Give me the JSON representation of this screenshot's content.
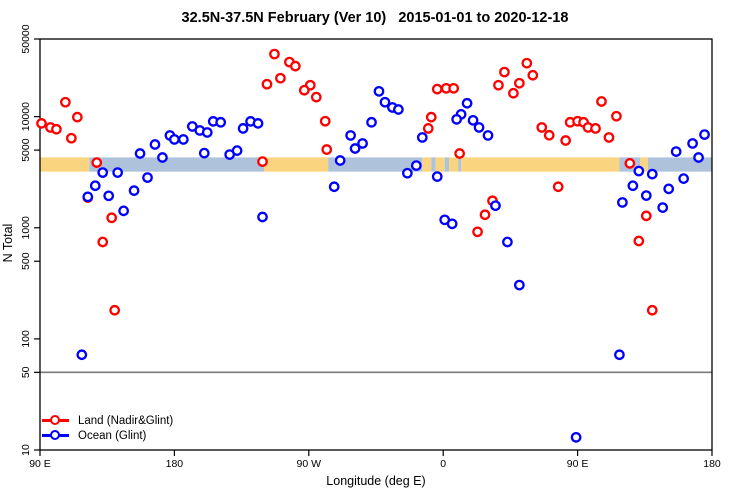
{
  "title": "32.5N-37.5N February (Ver 10)   2015-01-01 to 2020-12-18",
  "chart_data": {
    "type": "scatter",
    "title": "32.5N-37.5N February (Ver 10)   2015-01-01 to 2020-12-18",
    "xlabel": "Longitude (deg E)",
    "ylabel": "N Total",
    "x_axis": {
      "range": [
        90,
        540
      ],
      "note": "longitude increases eastward from 90E, wrapping through the dateline and Greenwich back to 180",
      "ticks": [
        {
          "v": 90,
          "label": "90 E"
        },
        {
          "v": 180,
          "label": "180"
        },
        {
          "v": 270,
          "label": "90 W"
        },
        {
          "v": 360,
          "label": "0"
        },
        {
          "v": 450,
          "label": "90 E"
        },
        {
          "v": 540,
          "label": "180"
        }
      ]
    },
    "y_axis": {
      "scale": "log",
      "range": [
        10,
        50000
      ],
      "ticks": [
        {
          "v": 50000,
          "label": "50000"
        },
        {
          "v": 10000,
          "label": "10000"
        },
        {
          "v": 5000,
          "label": "5000"
        },
        {
          "v": 1000,
          "label": "1000"
        },
        {
          "v": 500,
          "label": "500"
        },
        {
          "v": 100,
          "label": "100"
        },
        {
          "v": 50,
          "label": "50"
        },
        {
          "v": 10,
          "label": "10"
        }
      ]
    },
    "reference_line": {
      "y": 50,
      "color": "#7a7a7a"
    },
    "surface_band": {
      "n_range": [
        3200,
        4300
      ],
      "colors": {
        "land": "#FAD47E",
        "ocean": "#AFC2DC"
      },
      "segments": [
        {
          "from": 90,
          "to": 123,
          "surface": "land"
        },
        {
          "from": 123,
          "to": 240,
          "surface": "ocean"
        },
        {
          "from": 240,
          "to": 283,
          "surface": "land"
        },
        {
          "from": 283,
          "to": 346,
          "surface": "ocean"
        },
        {
          "from": 346,
          "to": 352,
          "surface": "land"
        },
        {
          "from": 352,
          "to": 355,
          "surface": "ocean"
        },
        {
          "from": 355,
          "to": 361,
          "surface": "land"
        },
        {
          "from": 361,
          "to": 364,
          "surface": "ocean"
        },
        {
          "from": 364,
          "to": 370,
          "surface": "land"
        },
        {
          "from": 370,
          "to": 372,
          "surface": "ocean"
        },
        {
          "from": 372,
          "to": 478,
          "surface": "land"
        },
        {
          "from": 478,
          "to": 492,
          "surface": "ocean"
        },
        {
          "from": 492,
          "to": 497,
          "surface": "land"
        },
        {
          "from": 497,
          "to": 540,
          "surface": "ocean"
        }
      ]
    },
    "legend": {
      "position": "bottom-left"
    },
    "series": [
      {
        "name": "Land (Nadir&Glint)",
        "color": "#FF0000",
        "points": [
          [
            107,
            13500
          ],
          [
            91,
            8700
          ],
          [
            97,
            8000
          ],
          [
            101,
            7700
          ],
          [
            115,
            9900
          ],
          [
            111,
            6400
          ],
          [
            128,
            3860
          ],
          [
            122,
            1870
          ],
          [
            138,
            1230
          ],
          [
            132,
            745
          ],
          [
            140,
            181
          ],
          [
            247,
            36600
          ],
          [
            257,
            31000
          ],
          [
            261,
            28500
          ],
          [
            251,
            22200
          ],
          [
            242,
            19600
          ],
          [
            271,
            19200
          ],
          [
            267,
            17300
          ],
          [
            275,
            15000
          ],
          [
            281,
            9100
          ],
          [
            282,
            5060
          ],
          [
            239,
            3940
          ],
          [
            356,
            17700
          ],
          [
            362,
            18000
          ],
          [
            367,
            18000
          ],
          [
            352,
            9900
          ],
          [
            350,
            7840
          ],
          [
            371,
            4660
          ],
          [
            401,
            25200
          ],
          [
            416,
            30300
          ],
          [
            420,
            23600
          ],
          [
            411,
            20000
          ],
          [
            397,
            19200
          ],
          [
            407,
            16250
          ],
          [
            426,
            8000
          ],
          [
            431,
            6800
          ],
          [
            383,
            920
          ],
          [
            393,
            1750
          ],
          [
            388,
            1310
          ],
          [
            466,
            13700
          ],
          [
            476,
            10100
          ],
          [
            445,
            8900
          ],
          [
            450,
            9100
          ],
          [
            454,
            8900
          ],
          [
            457,
            8000
          ],
          [
            462,
            7840
          ],
          [
            471,
            6500
          ],
          [
            442,
            6100
          ],
          [
            485,
            3800
          ],
          [
            437,
            2340
          ],
          [
            496,
            1280
          ],
          [
            491,
            760
          ],
          [
            500,
            181
          ]
        ]
      },
      {
        "name": "Ocean (Glint)",
        "color": "#0000FF",
        "points": [
          [
            118,
            72
          ],
          [
            122,
            1900
          ],
          [
            127,
            2390
          ],
          [
            136,
            1940
          ],
          [
            146,
            1420
          ],
          [
            153,
            2160
          ],
          [
            132,
            3140
          ],
          [
            142,
            3140
          ],
          [
            162,
            2830
          ],
          [
            157,
            4660
          ],
          [
            167,
            5620
          ],
          [
            172,
            4290
          ],
          [
            177,
            6780
          ],
          [
            180,
            6240
          ],
          [
            186,
            6240
          ],
          [
            192,
            8170
          ],
          [
            197,
            7520
          ],
          [
            202,
            7210
          ],
          [
            200,
            4700
          ],
          [
            206,
            9070
          ],
          [
            211,
            8900
          ],
          [
            226,
            7840
          ],
          [
            231,
            9070
          ],
          [
            236,
            8700
          ],
          [
            217,
            4560
          ],
          [
            222,
            4950
          ],
          [
            298,
            6780
          ],
          [
            306,
            5740
          ],
          [
            301,
            5170
          ],
          [
            312,
            8900
          ],
          [
            317,
            16900
          ],
          [
            291,
            4030
          ],
          [
            287,
            2340
          ],
          [
            239,
            1250
          ],
          [
            321,
            13500
          ],
          [
            326,
            12100
          ],
          [
            330,
            11600
          ],
          [
            346,
            6500
          ],
          [
            376,
            13200
          ],
          [
            372,
            10500
          ],
          [
            369,
            9460
          ],
          [
            380,
            9270
          ],
          [
            384,
            8000
          ],
          [
            390,
            6780
          ],
          [
            342,
            3630
          ],
          [
            336,
            3100
          ],
          [
            356,
            2890
          ],
          [
            395,
            1580
          ],
          [
            361,
            1180
          ],
          [
            366,
            1085
          ],
          [
            403,
            745
          ],
          [
            411,
            305
          ],
          [
            478,
            72
          ],
          [
            449,
            13
          ],
          [
            535,
            6900
          ],
          [
            527,
            5740
          ],
          [
            516,
            4850
          ],
          [
            531,
            4290
          ],
          [
            491,
            3240
          ],
          [
            500,
            3040
          ],
          [
            487,
            2390
          ],
          [
            521,
            2770
          ],
          [
            511,
            2240
          ],
          [
            496,
            1950
          ],
          [
            480,
            1690
          ],
          [
            507,
            1520
          ]
        ]
      }
    ]
  }
}
